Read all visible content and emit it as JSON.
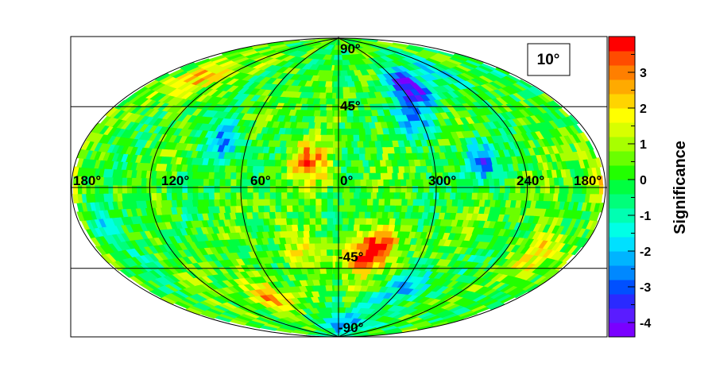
{
  "chart_data": {
    "type": "heatmap",
    "projection": "hammer-aitoff (all-sky, equatorial)",
    "smoothing_label": "10°",
    "colorbar": {
      "label": "Significance",
      "range": [
        -4.4,
        4.0
      ],
      "ticks": [
        3,
        2,
        1,
        0,
        -1,
        -2,
        -3,
        -4
      ],
      "tick_labels": [
        "3",
        "2",
        "1",
        "0",
        "-1",
        "-2",
        "-3",
        "-4"
      ],
      "colors": [
        "#7a00ff",
        "#5a1cff",
        "#2a2aff",
        "#0050ff",
        "#0088ff",
        "#00b4ff",
        "#00e0ff",
        "#00ffe6",
        "#00ffb2",
        "#00ff7a",
        "#00ff40",
        "#22ff00",
        "#6aff00",
        "#a8ff00",
        "#d8ff00",
        "#ffff00",
        "#ffd400",
        "#ffaa00",
        "#ff7f00",
        "#ff4c00",
        "#ff0000"
      ]
    },
    "longitude_labels": [
      "180°",
      "120°",
      "60°",
      "0°",
      "300°",
      "240°",
      "180°"
    ],
    "latitude_labels": [
      "90°",
      "45°",
      "-45°",
      "-90°"
    ],
    "hotspots": [
      {
        "lon": 330,
        "lat": -32,
        "sig": 3.0
      },
      {
        "lon": 18,
        "lat": 15,
        "sig": 3.0
      },
      {
        "lon": 345,
        "lat": -38,
        "sig": 2.5
      },
      {
        "lon": 140,
        "lat": 55,
        "sig": 2.4
      },
      {
        "lon": 75,
        "lat": -60,
        "sig": 2.4
      },
      {
        "lon": 210,
        "lat": -28,
        "sig": 2.2
      },
      {
        "lon": 185,
        "lat": 4,
        "sig": 2.0
      },
      {
        "lon": 30,
        "lat": -30,
        "sig": 1.8
      },
      {
        "lon": 290,
        "lat": 55,
        "sig": -4.0
      },
      {
        "lon": 75,
        "lat": 25,
        "sig": -3.3
      },
      {
        "lon": 268,
        "lat": 14,
        "sig": -3.0
      },
      {
        "lon": 305,
        "lat": 35,
        "sig": -2.6
      },
      {
        "lon": 290,
        "lat": -55,
        "sig": -2.2
      },
      {
        "lon": 160,
        "lat": -15,
        "sig": -2.0
      },
      {
        "lon": 330,
        "lat": -80,
        "sig": -2.4
      },
      {
        "lon": 240,
        "lat": 60,
        "sig": -1.8
      }
    ]
  }
}
